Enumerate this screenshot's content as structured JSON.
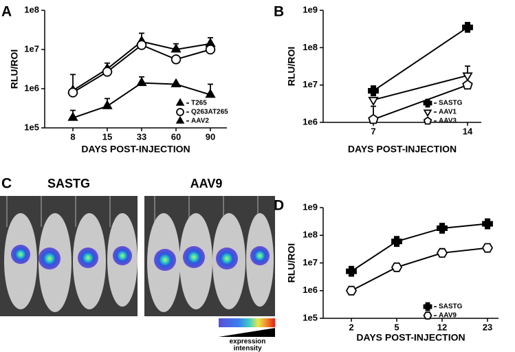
{
  "chart_data": [
    {
      "type": "line",
      "label": "A",
      "ylabel": "RLU/ROI",
      "xlabel": "DAYS POST-INJECTION",
      "log_y": true,
      "categories": [
        "8",
        "15",
        "33",
        "60",
        "90"
      ],
      "ylim": [
        100000,
        100000000
      ],
      "yticks": [
        {
          "value": 100000,
          "label": "1e5"
        },
        {
          "value": 1000000,
          "label": "1e6"
        },
        {
          "value": 10000000,
          "label": "1e7"
        },
        {
          "value": 100000000,
          "label": "1e8"
        }
      ],
      "series": [
        {
          "name": "T265",
          "color": "#000000",
          "marker": "triangle",
          "filled": true,
          "values": [
            900000,
            3200000,
            16000000,
            10000000,
            14000000
          ],
          "errors": [
            1400000,
            1300000,
            10000000,
            4000000,
            6000000
          ]
        },
        {
          "name": "Q263AT265",
          "color": "#000000",
          "marker": "circle",
          "filled": false,
          "values": [
            800000,
            2700000,
            13000000,
            5600000,
            10000000
          ],
          "errors": [
            null,
            null,
            null,
            null,
            null
          ]
        },
        {
          "name": "AAV2",
          "color": "#000000",
          "marker": "triangle",
          "filled": true,
          "values": [
            180000,
            360000,
            1400000,
            1300000,
            700000
          ],
          "errors": [
            100000,
            200000,
            600000,
            null,
            600000
          ]
        }
      ]
    },
    {
      "type": "line",
      "label": "B",
      "ylabel": "RLU/ROI",
      "xlabel": "DAYS POST-INJECTION",
      "log_y": true,
      "categories": [
        "7",
        "14"
      ],
      "ylim": [
        1000000,
        1000000000
      ],
      "yticks": [
        {
          "value": 1000000,
          "label": "1e6"
        },
        {
          "value": 10000000,
          "label": "1e7"
        },
        {
          "value": 100000000,
          "label": "1e8"
        },
        {
          "value": 1000000000,
          "label": "1e9"
        }
      ],
      "series": [
        {
          "name": "SASTG",
          "color": "#000000",
          "marker": "square-cross",
          "filled": true,
          "values": [
            7000000,
            350000000
          ],
          "errors": [
            1500000,
            50000000
          ]
        },
        {
          "name": "AAV1",
          "color": "#000000",
          "marker": "triangle-down",
          "filled": false,
          "values": [
            4000000,
            18000000
          ],
          "errors": [
            null,
            14000000
          ]
        },
        {
          "name": "AAV3",
          "color": "#000000",
          "marker": "pentagon",
          "filled": false,
          "values": [
            1200000,
            10000000
          ],
          "errors": [
            1500000,
            null
          ]
        }
      ]
    },
    {
      "type": "line",
      "label": "D",
      "ylabel": "RLU/ROI",
      "xlabel": "DAYS POST-INJECTION",
      "log_y": true,
      "categories": [
        "2",
        "5",
        "12",
        "23"
      ],
      "ylim": [
        100000,
        1000000000
      ],
      "yticks": [
        {
          "value": 100000,
          "label": "1e5"
        },
        {
          "value": 1000000,
          "label": "1e6"
        },
        {
          "value": 10000000,
          "label": "1e7"
        },
        {
          "value": 100000000,
          "label": "1e8"
        },
        {
          "value": 1000000000,
          "label": "1e9"
        }
      ],
      "series": [
        {
          "name": "SASTG",
          "color": "#000000",
          "marker": "square-cross",
          "filled": true,
          "values": [
            5000000,
            60000000,
            180000000,
            260000000
          ],
          "errors": [
            null,
            null,
            null,
            null
          ]
        },
        {
          "name": "AAV9",
          "color": "#000000",
          "marker": "hexagon",
          "filled": false,
          "values": [
            1000000,
            7000000,
            23000000,
            35000000
          ],
          "errors": [
            null,
            null,
            10000000,
            10000000
          ]
        }
      ]
    }
  ],
  "image_panel": {
    "label": "C",
    "titles": [
      "SASTG",
      "AAV9"
    ],
    "colorbar_label": [
      "expression",
      "intensity"
    ]
  }
}
